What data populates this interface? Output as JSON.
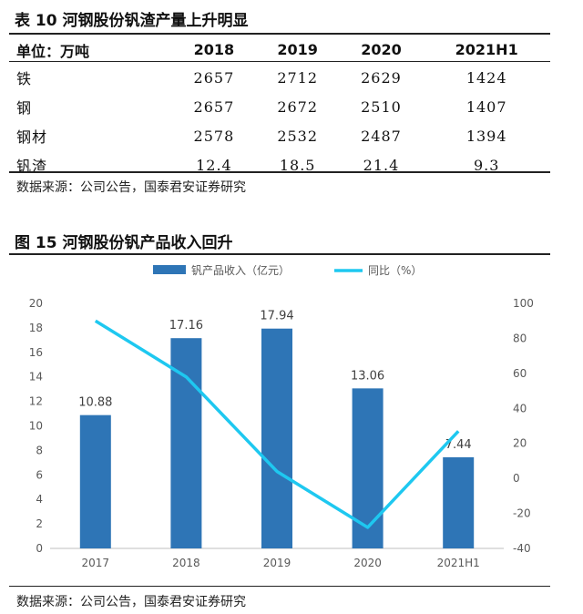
{
  "table": {
    "title": "表 10  河钢股份钒渣产量上升明显",
    "headers": [
      "单位：万吨",
      "2018",
      "2019",
      "2020",
      "2021H1"
    ],
    "rows": [
      {
        "label": "铁",
        "values": [
          "2657",
          "2712",
          "2629",
          "1424"
        ]
      },
      {
        "label": "钢",
        "values": [
          "2657",
          "2672",
          "2510",
          "1407"
        ]
      },
      {
        "label": "钢材",
        "values": [
          "2578",
          "2532",
          "2487",
          "1394"
        ]
      },
      {
        "label": "钒渣",
        "values": [
          "12.4",
          "18.5",
          "21.4",
          "9.3"
        ]
      }
    ],
    "source": "数据来源：公司公告，国泰君安证券研究"
  },
  "figure": {
    "title": "图 15  河钢股份钒产品收入回升",
    "source": "数据来源：公司公告，国泰君安证券研究"
  },
  "chart_data": {
    "type": "bar",
    "categories": [
      "2017",
      "2018",
      "2019",
      "2020",
      "2021H1"
    ],
    "series": [
      {
        "name": "钒产品收入（亿元）",
        "type": "bar",
        "axis": "left",
        "color": "#2e75b6",
        "values": [
          10.88,
          17.16,
          17.94,
          13.06,
          7.44
        ],
        "labels": [
          "10.88",
          "17.16",
          "17.94",
          "13.06",
          "7.44"
        ]
      },
      {
        "name": "同比（%）",
        "type": "line",
        "axis": "right",
        "color": "#1ec8f0",
        "values": [
          90,
          58,
          4,
          -28,
          27
        ]
      }
    ],
    "ylim_left": [
      0,
      20
    ],
    "yticks_left": [
      "0",
      "2",
      "4",
      "6",
      "8",
      "10",
      "12",
      "14",
      "16",
      "18",
      "20"
    ],
    "ylim_right": [
      -40,
      100
    ],
    "yticks_right": [
      "-40",
      "-20",
      "0",
      "20",
      "40",
      "60",
      "80",
      "100"
    ],
    "legend_position": "top-center",
    "grid": false
  }
}
